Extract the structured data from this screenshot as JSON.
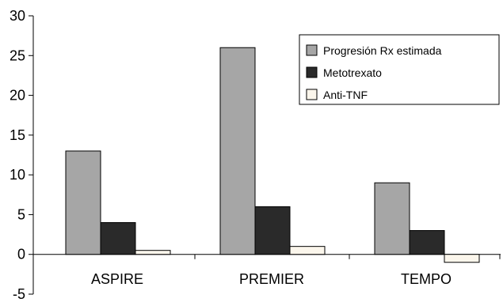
{
  "chart_data": {
    "type": "bar",
    "categories": [
      "ASPIRE",
      "PREMIER",
      "TEMPO"
    ],
    "series": [
      {
        "name": "Progresión Rx estimada",
        "values": [
          13,
          26,
          9
        ],
        "color": "#a6a6a6"
      },
      {
        "name": "Metotrexato",
        "values": [
          4,
          6,
          3
        ],
        "color": "#2a2a2a"
      },
      {
        "name": "Anti-TNF",
        "values": [
          0.5,
          1,
          -1
        ],
        "color": "#fbf6ec"
      }
    ],
    "yticks": [
      "-5",
      "0",
      "5",
      "10",
      "15",
      "20",
      "25",
      "30"
    ],
    "ylim": [
      -5,
      30
    ],
    "title": "",
    "xlabel": "",
    "ylabel": "",
    "legend_position": "top-right",
    "grid": false
  }
}
